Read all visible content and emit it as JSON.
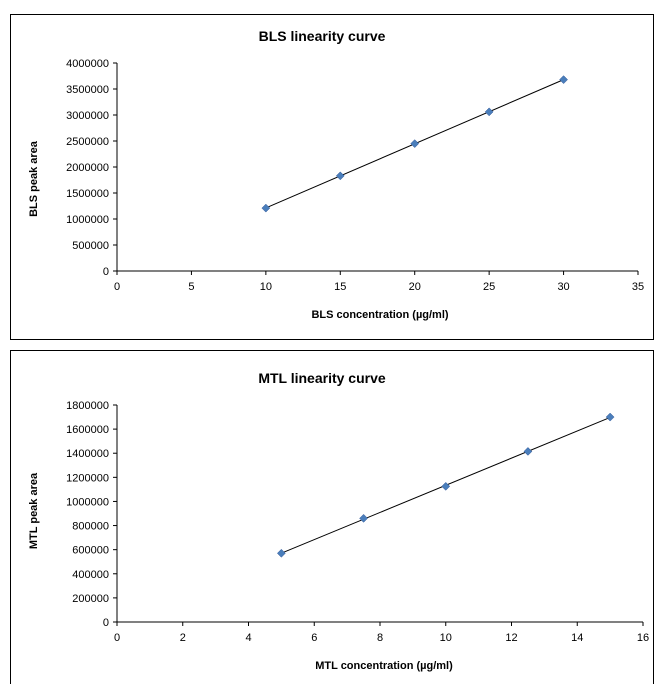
{
  "chart_data": [
    {
      "type": "scatter",
      "title": "BLS linearity curve",
      "xlabel": "BLS concentration (µg/ml)",
      "ylabel": "BLS peak area",
      "xlim": [
        0,
        35
      ],
      "ylim": [
        0,
        4000000
      ],
      "xticks": [
        0,
        5,
        10,
        15,
        20,
        25,
        30,
        35
      ],
      "yticks": [
        0,
        500000,
        1000000,
        1500000,
        2000000,
        2500000,
        3000000,
        3500000,
        4000000
      ],
      "grid": false,
      "legend": "none",
      "trendline": "linear",
      "marker": "diamond",
      "marker_color": "#4A7EBB",
      "series": [
        {
          "x": [
            10,
            15,
            20,
            25,
            30
          ],
          "y": [
            1210000,
            1830000,
            2450000,
            3060000,
            3680000
          ]
        }
      ]
    },
    {
      "type": "scatter",
      "title": "MTL linearity curve",
      "xlabel": "MTL concentration (µg/ml)",
      "ylabel": "MTL peak area",
      "xlim": [
        0,
        16
      ],
      "ylim": [
        0,
        1800000
      ],
      "xticks": [
        0,
        2,
        4,
        6,
        8,
        10,
        12,
        14,
        16
      ],
      "yticks": [
        0,
        200000,
        400000,
        600000,
        800000,
        1000000,
        1200000,
        1400000,
        1600000,
        1800000
      ],
      "grid": false,
      "legend": "none",
      "trendline": "linear",
      "marker": "diamond",
      "marker_color": "#4A7EBB",
      "series": [
        {
          "x": [
            5,
            7.5,
            10,
            12.5,
            15
          ],
          "y": [
            570000,
            860000,
            1125000,
            1415000,
            1700000
          ]
        }
      ]
    }
  ]
}
